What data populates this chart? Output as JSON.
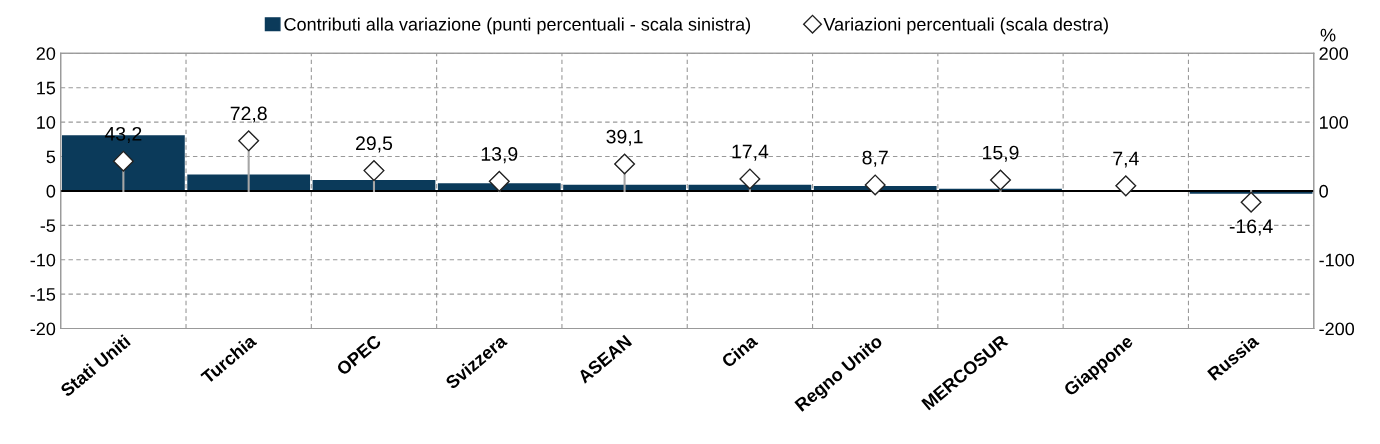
{
  "chart_data": {
    "type": "bar",
    "categories": [
      "Stati Uniti",
      "Turchia",
      "OPEC",
      "Svizzera",
      "ASEAN",
      "Cina",
      "Regno Unito",
      "MERCOSUR",
      "Giappone",
      "Russia"
    ],
    "series": [
      {
        "name": "Contributi alla variazione (punti percentuali - scala sinistra)",
        "color": "#0b3a5a",
        "values": [
          8.1,
          2.4,
          1.6,
          1.1,
          0.9,
          0.9,
          0.7,
          0.3,
          0.1,
          -0.4
        ]
      },
      {
        "name": "Variazioni percentuali (scala destra)",
        "type": "lollipop",
        "axis": "y2",
        "color": "#ffffff",
        "marker": "diamond",
        "values": [
          43.2,
          72.8,
          29.5,
          13.9,
          39.1,
          17.4,
          8.7,
          15.9,
          7.4,
          -16.4
        ],
        "value_labels": [
          "43,2",
          "72,8",
          "29,5",
          "13,9",
          "39,1",
          "17,4",
          "8,7",
          "15,9",
          "7,4",
          "-16,4"
        ]
      }
    ],
    "y2label": "%",
    "ylim": [
      -20,
      20
    ],
    "yticks": [
      -20,
      -15,
      -10,
      -5,
      0,
      5,
      10,
      15,
      20
    ],
    "y2lim": [
      -200,
      200
    ],
    "y2ticks": [
      -200,
      -100,
      0,
      100,
      200
    ],
    "grid": true,
    "legend": "top"
  }
}
